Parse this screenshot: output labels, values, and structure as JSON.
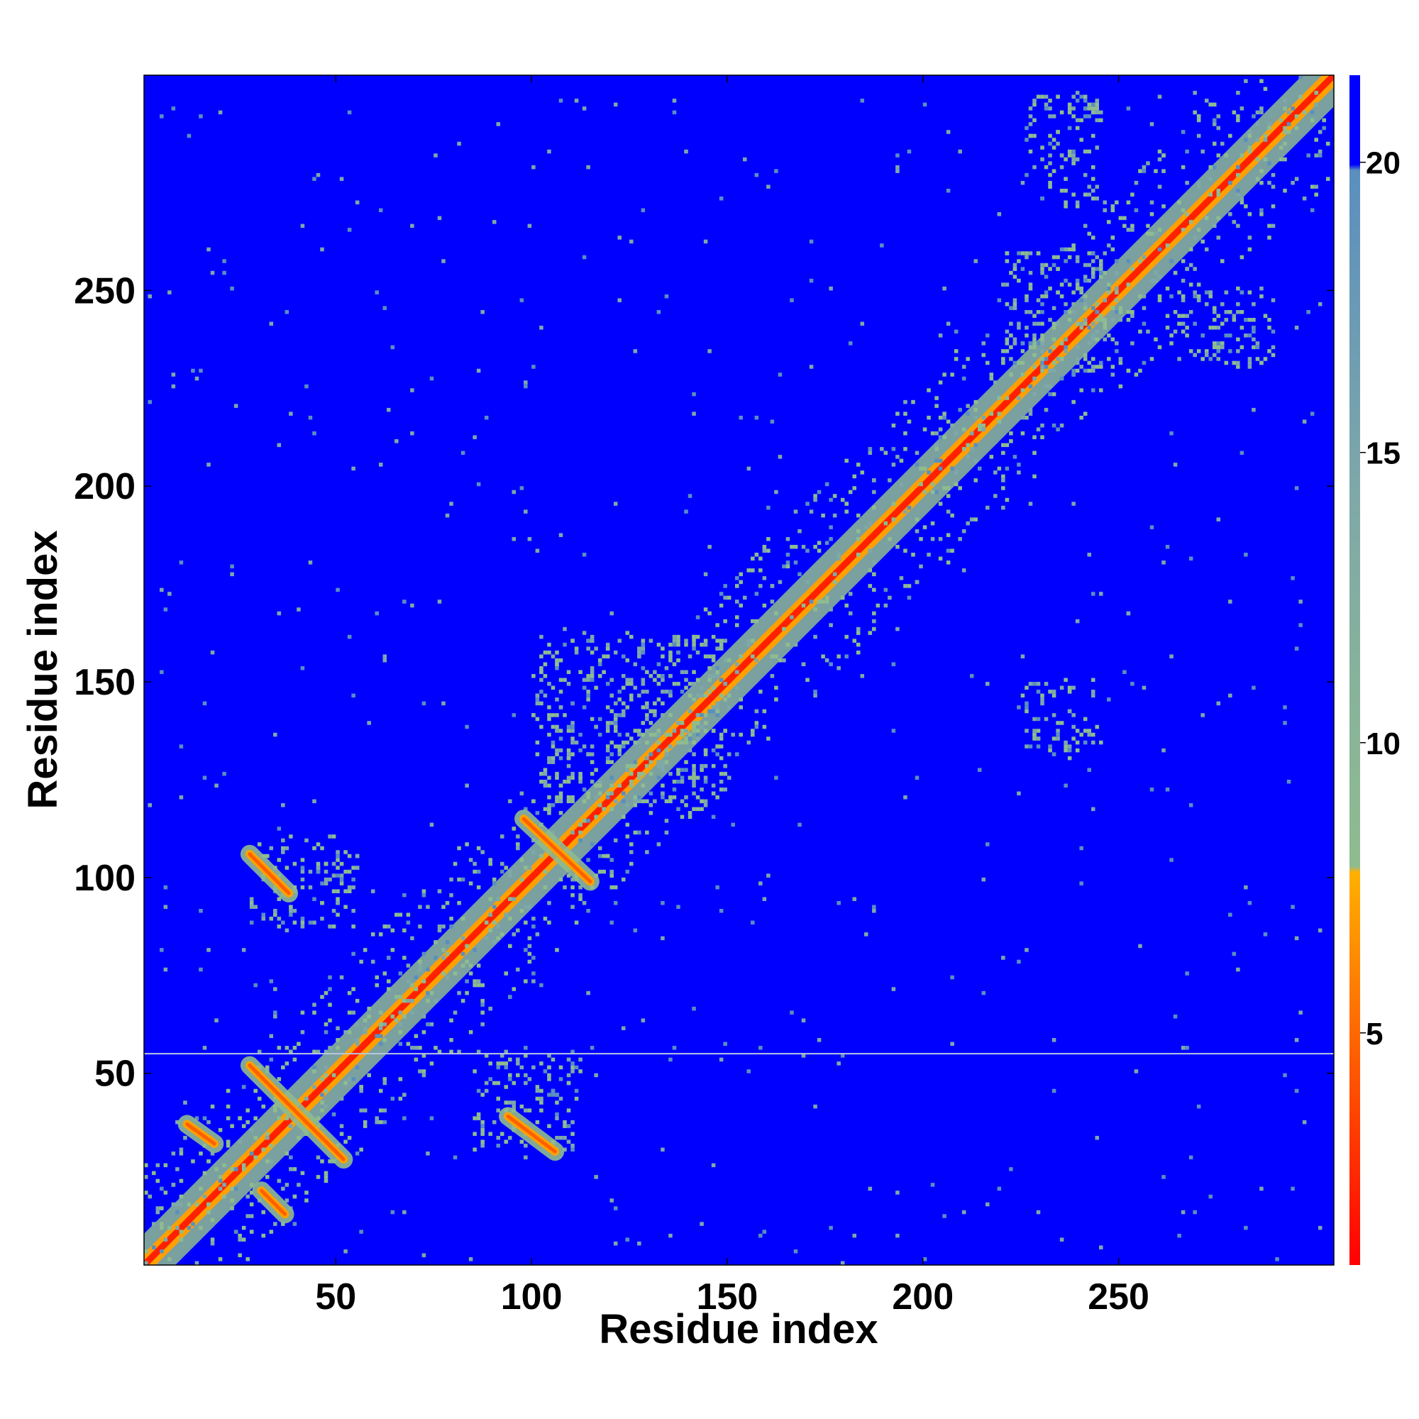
{
  "chart_data": {
    "type": "heatmap",
    "title": "",
    "xlabel": "Residue index",
    "ylabel": "Residue index",
    "xlim": [
      1,
      305
    ],
    "ylim": [
      1,
      305
    ],
    "x_ticks": [
      50,
      100,
      150,
      200,
      250
    ],
    "y_ticks": [
      50,
      100,
      150,
      200,
      250
    ],
    "x_tick_labels": [
      "50",
      "100",
      "150",
      "200",
      "250"
    ],
    "y_tick_labels": [
      "50",
      "100",
      "150",
      "200",
      "250"
    ],
    "colorbar": {
      "ticks": [
        5,
        10,
        15,
        20
      ],
      "tick_labels": [
        "5",
        "10",
        "15",
        "20"
      ],
      "range": [
        1,
        21.5
      ],
      "colors": [
        "#ff0000",
        "#ff6000",
        "#ffb000",
        "#8fbc8f",
        "#5a8fbf",
        "#0000ff"
      ]
    },
    "background_value": 21,
    "horizontal_line_y": 55,
    "features": {
      "diagonal": {
        "from": 1,
        "to": 305
      },
      "crossing_contacts": [
        {
          "x": [
            28,
            52
          ],
          "y": [
            52,
            28
          ]
        },
        {
          "x": [
            28,
            38
          ],
          "y": [
            106,
            96
          ]
        },
        {
          "x": [
            94,
            106
          ],
          "y": [
            39,
            30
          ]
        },
        {
          "x": [
            98,
            115
          ],
          "y": [
            115,
            99
          ]
        },
        {
          "x": [
            12,
            19
          ],
          "y": [
            37,
            32
          ]
        },
        {
          "x": [
            31,
            37
          ],
          "y": [
            20,
            14
          ]
        }
      ],
      "clusters": [
        {
          "x": [
            28,
            55
          ],
          "y": [
            86,
            110
          ]
        },
        {
          "x": [
            85,
            112
          ],
          "y": [
            30,
            56
          ]
        },
        {
          "x": [
            100,
            150
          ],
          "y": [
            118,
            162
          ]
        },
        {
          "x": [
            220,
            250
          ],
          "y": [
            228,
            260
          ]
        },
        {
          "x": [
            225,
            245
          ],
          "y": [
            270,
            300
          ]
        },
        {
          "x": [
            262,
            290
          ],
          "y": [
            230,
            250
          ]
        },
        {
          "x": [
            225,
            245
          ],
          "y": [
            130,
            150
          ]
        }
      ]
    }
  }
}
